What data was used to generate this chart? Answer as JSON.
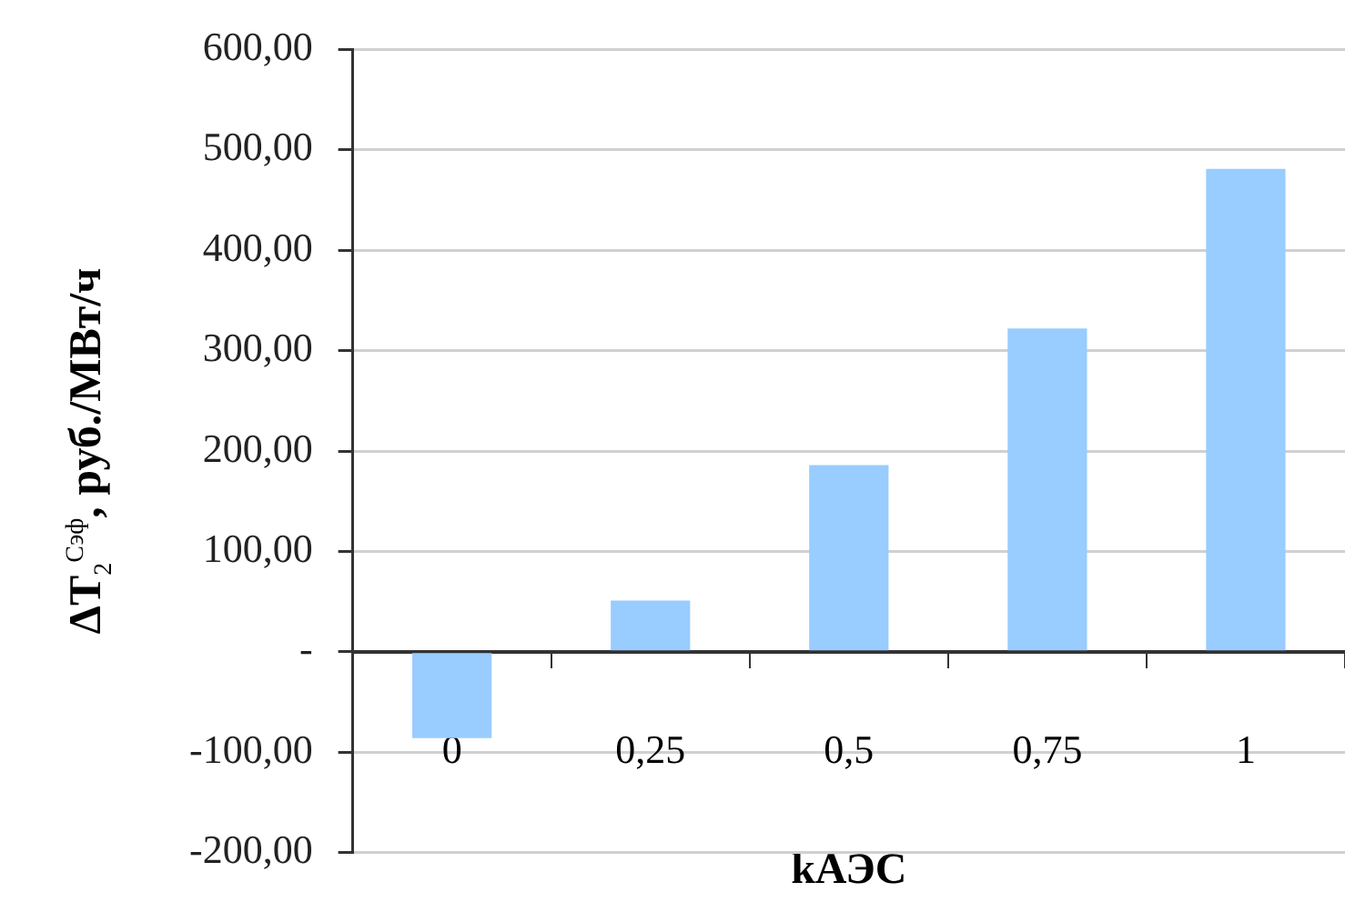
{
  "chart_data": {
    "type": "bar",
    "ylabel": "ΔT$_{2}$$^{Сэф}$, руб./МВт/ч",
    "xlabel": "kАЭС",
    "categories": [
      "0",
      "0,25",
      "0,5",
      "0,75",
      "1"
    ],
    "values": [
      -86,
      51,
      186,
      322,
      481
    ],
    "color": "#99ccff",
    "ylim": [
      -200,
      600
    ],
    "yticks": [
      {
        "value": -200,
        "label": "-200,00"
      },
      {
        "value": -100,
        "label": "-100,00"
      },
      {
        "value": 0,
        "label": "-"
      },
      {
        "value": 100,
        "label": "100,00"
      },
      {
        "value": 200,
        "label": "200,00"
      },
      {
        "value": 300,
        "label": "300,00"
      },
      {
        "value": 400,
        "label": "400,00"
      },
      {
        "value": 500,
        "label": "500,00"
      },
      {
        "value": 600,
        "label": "600,00"
      }
    ],
    "grid": "y",
    "legend": false
  }
}
